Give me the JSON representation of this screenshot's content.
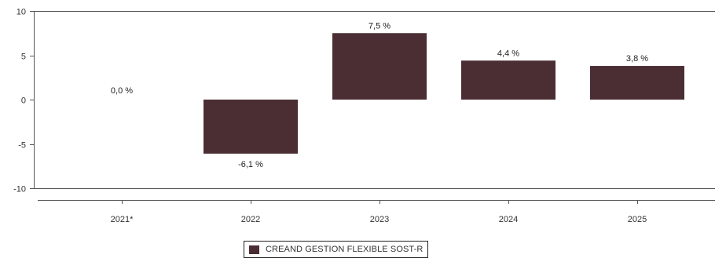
{
  "chart_data": {
    "type": "bar",
    "categories": [
      "2021*",
      "2022",
      "2023",
      "2024",
      "2025"
    ],
    "values": [
      0.0,
      -6.1,
      7.5,
      4.4,
      3.8
    ],
    "value_labels": [
      "0,0 %",
      "-6,1 %",
      "7,5 %",
      "4,4 %",
      "3,8 %"
    ],
    "ylim": [
      -10,
      10
    ],
    "yticks": [
      10,
      5,
      0,
      -5,
      -10
    ],
    "ytick_labels": [
      "10",
      "5",
      "0",
      "-5",
      "-10"
    ],
    "grid": false,
    "legend_position": "bottom-center",
    "series": [
      {
        "name": "CREAND GESTION FLEXIBLE SOST-R",
        "color": "#4a2e33"
      }
    ]
  }
}
